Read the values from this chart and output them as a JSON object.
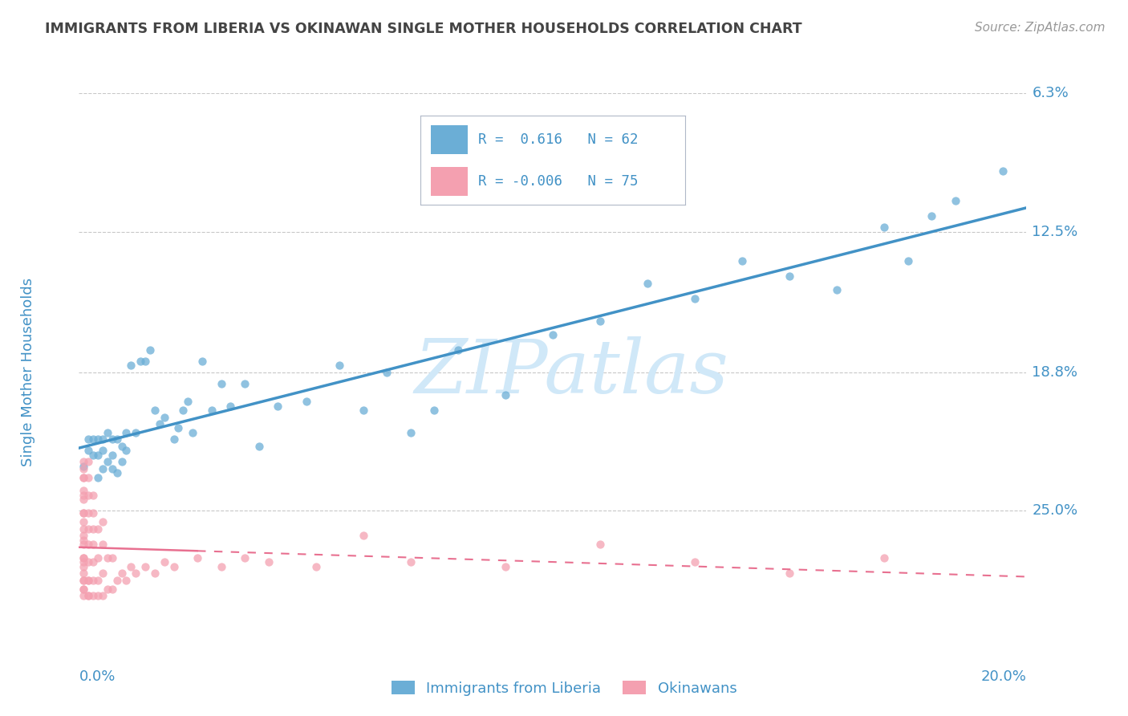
{
  "title": "IMMIGRANTS FROM LIBERIA VS OKINAWAN SINGLE MOTHER HOUSEHOLDS CORRELATION CHART",
  "source": "Source: ZipAtlas.com",
  "ylabel": "Single Mother Households",
  "x_tick_labels": [
    "0.0%",
    "20.0%"
  ],
  "y_tick_labels_right": [
    "25.0%",
    "18.8%",
    "12.5%",
    "6.3%"
  ],
  "legend_label1": "Immigrants from Liberia",
  "legend_label2": "Okinawans",
  "R1": "0.616",
  "N1": "62",
  "R2": "-0.006",
  "N2": "75",
  "blue_color": "#6baed6",
  "pink_color": "#f4a0b0",
  "blue_line_color": "#4292c6",
  "pink_line_color": "#e87090",
  "title_color": "#444444",
  "source_color": "#999999",
  "axis_label_color": "#4292c6",
  "legend_text_color": "#4292c6",
  "grid_color": "#c8c8c8",
  "watermark_color": "#d0e8f8",
  "watermark": "ZIPatlas",
  "xlim": [
    0.0,
    0.2
  ],
  "ylim": [
    0.0,
    0.25
  ],
  "y_ticks": [
    0.063,
    0.125,
    0.188,
    0.25
  ],
  "blue_scatter_x": [
    0.001,
    0.002,
    0.002,
    0.003,
    0.003,
    0.004,
    0.004,
    0.004,
    0.005,
    0.005,
    0.005,
    0.006,
    0.006,
    0.007,
    0.007,
    0.007,
    0.008,
    0.008,
    0.009,
    0.009,
    0.01,
    0.01,
    0.011,
    0.012,
    0.013,
    0.014,
    0.015,
    0.016,
    0.017,
    0.018,
    0.02,
    0.021,
    0.022,
    0.023,
    0.024,
    0.026,
    0.028,
    0.03,
    0.032,
    0.035,
    0.038,
    0.042,
    0.048,
    0.055,
    0.06,
    0.065,
    0.07,
    0.075,
    0.08,
    0.09,
    0.1,
    0.11,
    0.12,
    0.13,
    0.14,
    0.15,
    0.16,
    0.17,
    0.175,
    0.18,
    0.185,
    0.195
  ],
  "blue_scatter_y": [
    0.083,
    0.09,
    0.095,
    0.088,
    0.095,
    0.078,
    0.088,
    0.095,
    0.082,
    0.09,
    0.095,
    0.085,
    0.098,
    0.082,
    0.088,
    0.095,
    0.08,
    0.095,
    0.085,
    0.092,
    0.09,
    0.098,
    0.128,
    0.098,
    0.13,
    0.13,
    0.135,
    0.108,
    0.102,
    0.105,
    0.095,
    0.1,
    0.108,
    0.112,
    0.098,
    0.13,
    0.108,
    0.12,
    0.11,
    0.12,
    0.092,
    0.11,
    0.112,
    0.128,
    0.108,
    0.125,
    0.098,
    0.108,
    0.135,
    0.115,
    0.142,
    0.148,
    0.165,
    0.158,
    0.175,
    0.168,
    0.162,
    0.19,
    0.175,
    0.195,
    0.202,
    0.215
  ],
  "pink_scatter_x": [
    0.001,
    0.001,
    0.001,
    0.001,
    0.001,
    0.001,
    0.001,
    0.001,
    0.001,
    0.001,
    0.001,
    0.001,
    0.001,
    0.001,
    0.001,
    0.001,
    0.001,
    0.001,
    0.001,
    0.001,
    0.001,
    0.001,
    0.001,
    0.001,
    0.002,
    0.002,
    0.002,
    0.002,
    0.002,
    0.002,
    0.002,
    0.002,
    0.002,
    0.002,
    0.002,
    0.003,
    0.003,
    0.003,
    0.003,
    0.003,
    0.003,
    0.003,
    0.004,
    0.004,
    0.004,
    0.004,
    0.005,
    0.005,
    0.005,
    0.005,
    0.006,
    0.006,
    0.007,
    0.007,
    0.008,
    0.009,
    0.01,
    0.011,
    0.012,
    0.014,
    0.016,
    0.018,
    0.02,
    0.025,
    0.03,
    0.035,
    0.04,
    0.05,
    0.06,
    0.07,
    0.09,
    0.11,
    0.13,
    0.15,
    0.17
  ],
  "pink_scatter_y": [
    0.028,
    0.032,
    0.038,
    0.042,
    0.048,
    0.052,
    0.058,
    0.062,
    0.068,
    0.072,
    0.078,
    0.082,
    0.028,
    0.035,
    0.042,
    0.05,
    0.055,
    0.062,
    0.07,
    0.078,
    0.085,
    0.025,
    0.032,
    0.04,
    0.025,
    0.032,
    0.04,
    0.048,
    0.055,
    0.062,
    0.07,
    0.078,
    0.085,
    0.025,
    0.032,
    0.025,
    0.032,
    0.04,
    0.048,
    0.055,
    0.062,
    0.07,
    0.025,
    0.032,
    0.042,
    0.055,
    0.025,
    0.035,
    0.048,
    0.058,
    0.028,
    0.042,
    0.028,
    0.042,
    0.032,
    0.035,
    0.032,
    0.038,
    0.035,
    0.038,
    0.035,
    0.04,
    0.038,
    0.042,
    0.038,
    0.042,
    0.04,
    0.038,
    0.052,
    0.04,
    0.038,
    0.048,
    0.04,
    0.035,
    0.042
  ]
}
